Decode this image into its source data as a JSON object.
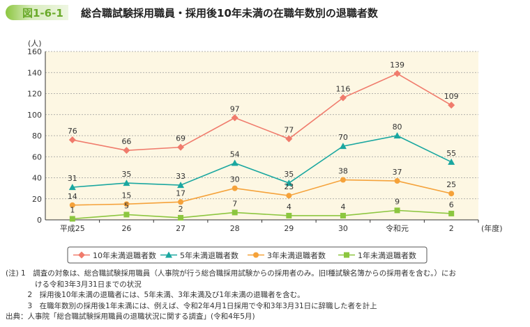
{
  "figure": {
    "number": "図1-6-1",
    "title": "総合職試験採用職員・採用後10年未満の在職年数別の退職者数"
  },
  "chart_data": {
    "type": "line",
    "ylabel": "(人)",
    "xlabel": "(年度)",
    "ylim": [
      0,
      160
    ],
    "yticks": [
      0,
      20,
      40,
      60,
      80,
      100,
      120,
      140,
      160
    ],
    "grid": true,
    "legend": "bottom",
    "categories": [
      "平成25",
      "26",
      "27",
      "28",
      "29",
      "30",
      "令和元",
      "2"
    ],
    "series": [
      {
        "name": "10年未満退職者数",
        "color": "#f07b6c",
        "marker": "diamond",
        "values": [
          76,
          66,
          69,
          97,
          77,
          116,
          139,
          109
        ]
      },
      {
        "name": "5年未満退職者数",
        "color": "#1aa7a0",
        "marker": "triangle",
        "values": [
          31,
          35,
          33,
          54,
          35,
          70,
          80,
          55
        ]
      },
      {
        "name": "3年未満退職者数",
        "color": "#f5a23a",
        "marker": "circle",
        "values": [
          14,
          15,
          17,
          30,
          23,
          38,
          37,
          25
        ]
      },
      {
        "name": "1年未満退職者数",
        "color": "#8cc63f",
        "marker": "square",
        "values": [
          1,
          5,
          2,
          7,
          4,
          4,
          9,
          6
        ]
      }
    ]
  },
  "notes": {
    "n1": "(注) 1　調査の対象は、総合職試験採用職員（人事院が行う総合職採用試験からの採用者のみ。旧Ⅰ種試験名簿からの採用者を含む。）にお\n　　　　ける令和3年3月31日までの状況",
    "n2": "　　　2　採用後10年未満の退職者には、5年未満、3年未満及び1年未満の退職者を含む。",
    "n3": "　　　3　在職年数別の採用後1年未満には、例えば、令和2年4月1日採用で令和3年3月31日に辞職した者を計上",
    "source": "出典：人事院「総合職試験採用職員の退職状況に関する調査」(令和4年5月)"
  }
}
